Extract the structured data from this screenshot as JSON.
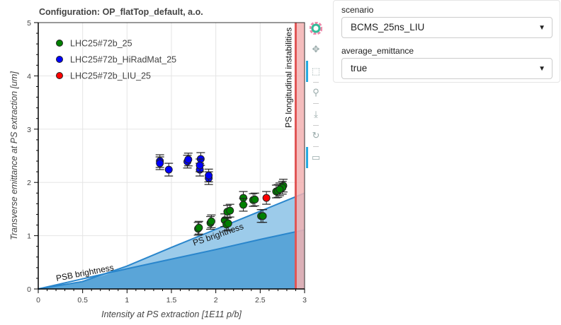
{
  "chart_data": {
    "type": "scatter",
    "title": "Configuration: OP_flatTop_default, a.o.",
    "xlabel": "Intensity at PS extraction [1E11 p/b]",
    "ylabel": "Transverse emittance at PS extraction [um]",
    "xlim": [
      0,
      3
    ],
    "ylim": [
      0,
      5
    ],
    "xticks": [
      "0",
      "0.5",
      "1",
      "1.5",
      "2",
      "2.5",
      "3"
    ],
    "yticks": [
      "0",
      "1",
      "2",
      "3",
      "4",
      "5"
    ],
    "grid": true,
    "legend_position": "top-left",
    "series": [
      {
        "name": "LHC25#72b_25",
        "color": "#008000",
        "x": [
          1.8,
          1.81,
          1.94,
          1.95,
          2.1,
          2.12,
          2.13,
          2.16,
          2.14,
          2.31,
          2.31,
          2.42,
          2.44,
          2.51,
          2.53,
          2.68,
          2.7,
          2.76,
          2.75,
          2.72
        ],
        "y": [
          1.13,
          1.15,
          1.24,
          1.27,
          1.29,
          1.21,
          1.45,
          1.47,
          1.23,
          1.71,
          1.58,
          1.67,
          1.68,
          1.37,
          1.37,
          1.83,
          1.84,
          1.94,
          1.9,
          1.87
        ]
      },
      {
        "name": "LHC25#72b_HiRadMat_25",
        "color": "#0000ff",
        "x": [
          1.37,
          1.37,
          1.47,
          1.68,
          1.69,
          1.82,
          1.83,
          1.82,
          1.92,
          1.92
        ],
        "y": [
          2.4,
          2.36,
          2.24,
          2.39,
          2.43,
          2.24,
          2.44,
          2.32,
          2.08,
          2.13
        ]
      },
      {
        "name": "LHC25#72b_LIU_25",
        "color": "#ff0000",
        "x": [
          2.57
        ],
        "y": [
          1.71
        ]
      }
    ],
    "regions": {
      "psb_brightness": {
        "label": "PSB brightness",
        "x": [
          0,
          0.5,
          1,
          1.5,
          2,
          2.5,
          3
        ],
        "y": [
          0,
          0.19,
          0.38,
          0.56,
          0.74,
          0.93,
          1.11
        ]
      },
      "ps_brightness": {
        "label": "PS brightness",
        "x": [
          0,
          0.5,
          1,
          1.5,
          2,
          2.5,
          3
        ],
        "y": [
          0,
          0.14,
          0.43,
          0.78,
          1.12,
          1.46,
          1.8
        ]
      },
      "ps_instabilities": {
        "label": "PS longitudinal instabilities",
        "x_from": 2.9,
        "x_to": 3
      }
    },
    "colors": {
      "fill_dark": "#5aa5d8",
      "fill_light": "#9ccbea",
      "line": "#2a86cc",
      "instab_fill": "#f2b2b2",
      "instab_line": "#e05555"
    }
  },
  "toolbar": {
    "icons": [
      "bokeh-logo-icon",
      "pan-icon",
      "box-zoom-icon",
      "wheel-zoom-icon",
      "save-icon",
      "reset-icon",
      "hover-icon"
    ]
  },
  "controls": {
    "scenario_label": "scenario",
    "scenario_value": "BCMS_25ns_LIU",
    "emittance_label": "average_emittance",
    "emittance_value": "true"
  }
}
